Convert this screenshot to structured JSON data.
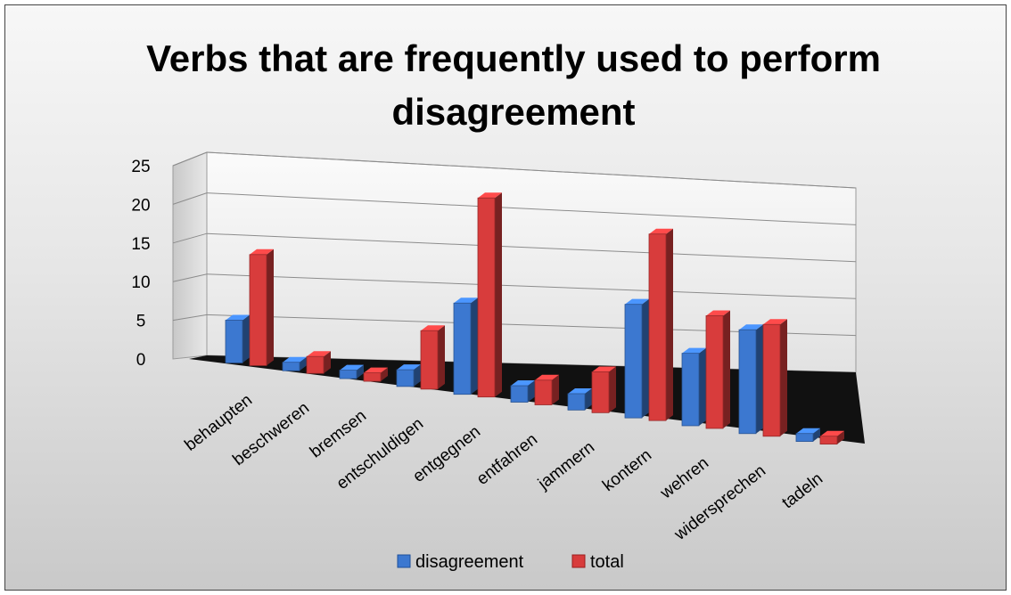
{
  "chart_data": {
    "type": "bar",
    "title_lines": [
      "Verbs that are frequently used to perform",
      "disagreement"
    ],
    "categories": [
      "behaupten",
      "beschweren",
      "bremsen",
      "entschuldigen",
      "entgegnen",
      "entfahren",
      "jammern",
      "kontern",
      "wehren",
      "widersprechen",
      "tadeln"
    ],
    "series": [
      {
        "name": "disagreement",
        "values": [
          5,
          1,
          1,
          2,
          11,
          2,
          2,
          14,
          9,
          13,
          1
        ],
        "color": "#3c78d0"
      },
      {
        "name": "total",
        "values": [
          13,
          2,
          1,
          7,
          24,
          3,
          5,
          23,
          14,
          14,
          1
        ],
        "color": "#d83c3c"
      }
    ],
    "yticks": [
      0,
      5,
      10,
      15,
      20,
      25
    ],
    "ylim": [
      0,
      25
    ],
    "grid": true,
    "legend": "bottom"
  }
}
